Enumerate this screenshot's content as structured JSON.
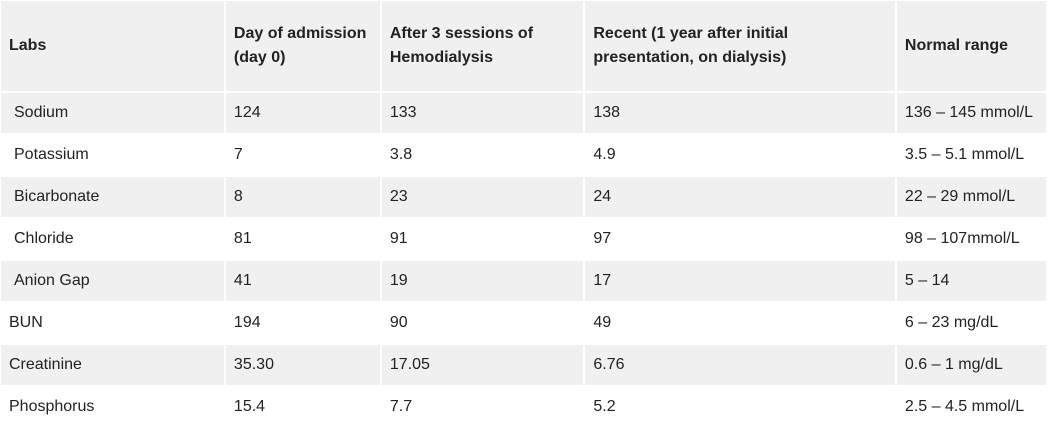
{
  "table": {
    "headers": [
      "Labs",
      "Day of admission (day 0)",
      "After 3 sessions of Hemodialysis",
      "Recent (1 year after initial presentation, on dialysis)",
      "Normal range"
    ],
    "rows": [
      {
        "lab": "Sodium",
        "indent": true,
        "day0": "124",
        "after_hd": "133",
        "recent": "138",
        "normal": "136 – 145 mmol/L"
      },
      {
        "lab": "Potassium",
        "indent": true,
        "day0": "7",
        "after_hd": "3.8",
        "recent": "4.9",
        "normal": "3.5 – 5.1 mmol/L"
      },
      {
        "lab": "Bicarbonate",
        "indent": true,
        "day0": "8",
        "after_hd": "23",
        "recent": "24",
        "normal": "22 – 29 mmol/L"
      },
      {
        "lab": "Chloride",
        "indent": true,
        "day0": "81",
        "after_hd": "91",
        "recent": "97",
        "normal": "98 – 107mmol/L"
      },
      {
        "lab": "Anion Gap",
        "indent": true,
        "day0": "41",
        "after_hd": "19",
        "recent": "17",
        "normal": "5 – 14"
      },
      {
        "lab": "BUN",
        "indent": false,
        "day0": "194",
        "after_hd": "90",
        "recent": "49",
        "normal": "6 – 23 mg/dL"
      },
      {
        "lab": "Creatinine",
        "indent": false,
        "day0": "35.30",
        "after_hd": "17.05",
        "recent": "6.76",
        "normal": "0.6 – 1 mg/dL"
      },
      {
        "lab": "Phosphorus",
        "indent": false,
        "day0": "15.4",
        "after_hd": "7.7",
        "recent": "5.2",
        "normal": "2.5 – 4.5 mmol/L"
      }
    ]
  }
}
